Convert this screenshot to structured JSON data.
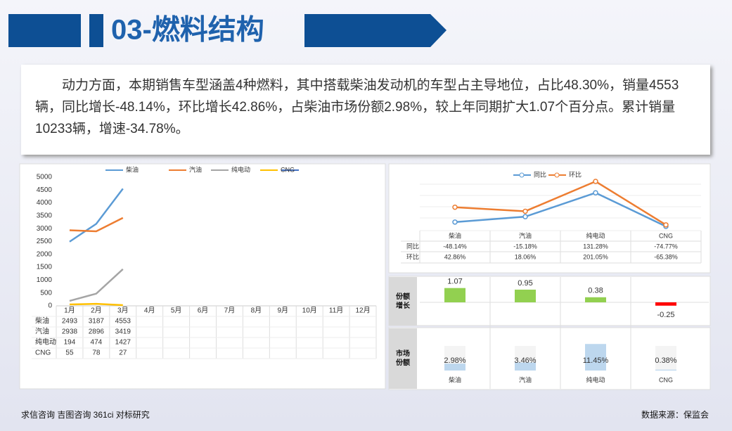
{
  "header": {
    "title": "03-燃料结构"
  },
  "paragraph": "动力方面，本期销售车型涵盖4种燃料，其中搭载柴油发动机的车型占主导地位，占比48.30%，销量4553辆，同比增长-48.14%，环比增长42.86%，占柴油市场份额2.98%，较上年同期扩大1.07个百分点。累计销量10233辆，增速-34.78%。",
  "footer": {
    "left": "求信咨询 吉图咨询 361ci 对标研究",
    "right": "数据来源：保监会"
  },
  "chart_data": [
    {
      "type": "line",
      "categories": [
        "1月",
        "2月",
        "3月",
        "4月",
        "5月",
        "6月",
        "7月",
        "8月",
        "9月",
        "10月",
        "11月",
        "12月"
      ],
      "series": [
        {
          "name": "柴油",
          "color": "#5b9bd5",
          "values": [
            2493,
            3187,
            4553,
            null,
            null,
            null,
            null,
            null,
            null,
            null,
            null,
            null
          ]
        },
        {
          "name": "汽油",
          "color": "#ed7d31",
          "values": [
            2938,
            2896,
            3419,
            null,
            null,
            null,
            null,
            null,
            null,
            null,
            null,
            null
          ]
        },
        {
          "name": "纯电动",
          "color": "#a5a5a5",
          "values": [
            194,
            474,
            1427,
            null,
            null,
            null,
            null,
            null,
            null,
            null,
            null,
            null
          ]
        },
        {
          "name": "CNG",
          "color": "#ffc000",
          "values": [
            55,
            78,
            27,
            null,
            null,
            null,
            null,
            null,
            null,
            null,
            null,
            null
          ]
        }
      ],
      "ylim": [
        0,
        5000
      ],
      "yticks": [
        0,
        500,
        1000,
        1500,
        2000,
        2500,
        3000,
        3500,
        4000,
        4500,
        5000
      ],
      "grid": false
    },
    {
      "type": "line",
      "categories": [
        "柴油",
        "汽油",
        "纯电动",
        "CNG"
      ],
      "series": [
        {
          "name": "同比",
          "color": "#5b9bd5",
          "values": [
            -48.14,
            -15.18,
            131.28,
            -74.77
          ],
          "value_labels": [
            "-48.14%",
            "-15.18%",
            "131.28%",
            "-74.77%"
          ]
        },
        {
          "name": "环比",
          "color": "#ed7d31",
          "values": [
            42.86,
            18.06,
            201.05,
            -65.38
          ],
          "value_labels": [
            "42.86%",
            "18.06%",
            "201.05%",
            "-65.38%"
          ]
        }
      ]
    },
    {
      "type": "bar",
      "title": "份额增长",
      "values": [
        1.07,
        0.95,
        0.38,
        -0.25
      ],
      "color": "#92d050",
      "negative_color": "#ff0000"
    },
    {
      "type": "bar",
      "title": "市场份额",
      "categories": [
        "柴油",
        "汽油",
        "纯电动",
        "CNG"
      ],
      "values": [
        2.98,
        3.46,
        11.45,
        0.38
      ],
      "value_labels": [
        "2.98%",
        "3.46%",
        "11.45%",
        "0.38%"
      ],
      "color": "#bdd7ee"
    }
  ]
}
